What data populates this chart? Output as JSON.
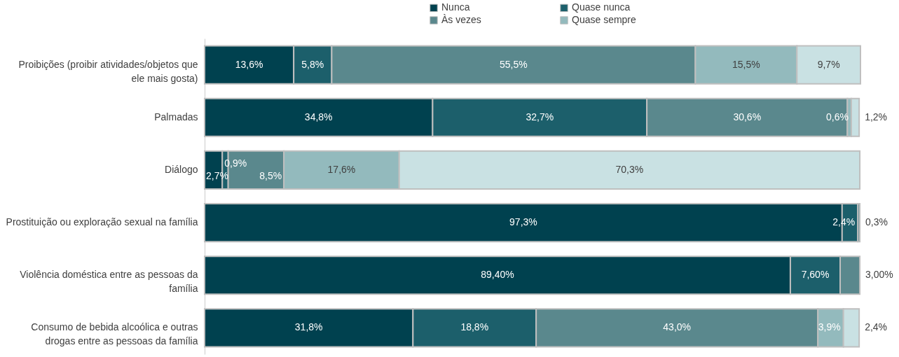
{
  "chart_data": {
    "type": "bar",
    "orientation": "horizontal",
    "stacked": true,
    "legend": "top",
    "categories": [
      "Proibições (proibir atividades/objetos que ele mais gosta)",
      "Palmadas",
      "Diálogo",
      "Prostituição ou exploração sexual na família",
      "Violência doméstica entre as pessoas da família",
      "Consumo de bebida alcoólica e outras drogas entre as pessoas da família"
    ],
    "series": [
      {
        "name": "Nunca",
        "color": "#00414f",
        "values": [
          13.6,
          34.8,
          2.7,
          97.3,
          89.4,
          31.8
        ],
        "value_labels": [
          "13,6%",
          "34,8%",
          "2,7%",
          "97,3%",
          "89,40%",
          "31,8%"
        ]
      },
      {
        "name": "Quase nunca",
        "color": "#1c5f6b",
        "values": [
          5.8,
          32.7,
          0.9,
          2.4,
          7.6,
          18.8
        ],
        "value_labels": [
          "5,8%",
          "32,7%",
          "0,9%",
          "2,4%",
          "7,60%",
          "18,8%"
        ]
      },
      {
        "name": "Às vezes",
        "color": "#5a888d",
        "values": [
          55.5,
          30.6,
          8.5,
          0.3,
          3.0,
          43.0
        ],
        "value_labels": [
          "55,5%",
          "30,6%",
          "8,5%",
          "0,3%",
          "3,00%",
          "43,0%"
        ]
      },
      {
        "name": "Quase sempre",
        "color": "#93babd",
        "values": [
          15.5,
          0.6,
          17.6,
          null,
          null,
          3.9
        ],
        "value_labels": [
          "15,5%",
          "0,6%",
          "17,6%",
          null,
          null,
          "3,9%"
        ]
      },
      {
        "color": "#c9e1e3",
        "values": [
          9.7,
          1.2,
          70.3,
          null,
          null,
          2.4
        ],
        "value_labels": [
          "9,7%",
          "1,2%",
          "70,3%",
          null,
          null,
          "2,4%"
        ]
      }
    ]
  }
}
